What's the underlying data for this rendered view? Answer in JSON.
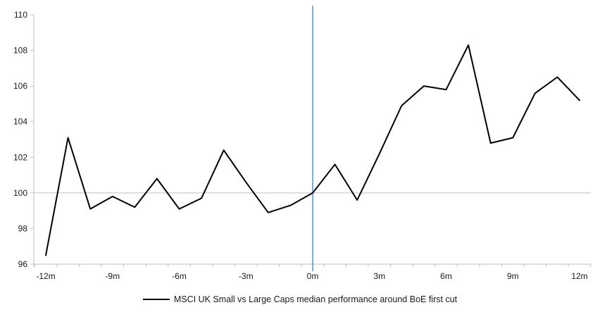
{
  "chart_data": {
    "type": "line",
    "title": "",
    "xlabel": "",
    "ylabel": "",
    "x": [
      -12,
      -11,
      -10,
      -9,
      -8,
      -7,
      -6,
      -5,
      -4,
      -3,
      -2,
      -1,
      0,
      1,
      2,
      3,
      4,
      5,
      6,
      7,
      8,
      9,
      10,
      11,
      12
    ],
    "series": [
      {
        "name": "MSCI UK Small vs Large Caps median performance around BoE first cut",
        "values": [
          96.5,
          103.1,
          99.1,
          99.8,
          99.2,
          100.8,
          99.1,
          99.7,
          102.4,
          100.6,
          98.9,
          99.3,
          100.0,
          101.6,
          99.6,
          102.2,
          104.9,
          106.0,
          105.8,
          108.3,
          102.8,
          103.1,
          105.6,
          106.5,
          105.2
        ]
      }
    ],
    "xlim": [
      -12,
      12
    ],
    "ylim": [
      96,
      110
    ],
    "y_ticks": [
      96,
      98,
      100,
      102,
      104,
      106,
      108,
      110
    ],
    "x_ticks": [
      {
        "month": -12,
        "label": "-12m"
      },
      {
        "month": -9,
        "label": "-9m"
      },
      {
        "month": -6,
        "label": "-6m"
      },
      {
        "month": -3,
        "label": "-3m"
      },
      {
        "month": 0,
        "label": "0m"
      },
      {
        "month": 3,
        "label": "3m"
      },
      {
        "month": 6,
        "label": "6m"
      },
      {
        "month": 9,
        "label": "9m"
      },
      {
        "month": 12,
        "label": "12m"
      }
    ],
    "grid": "single horizontal reference line at y=100",
    "reference_lines": {
      "horizontal_at_y": 100,
      "vertical_at_x": 0
    },
    "legend_position": "bottom-center",
    "colors": {
      "series_line": "#000000",
      "vertical_event_line": "#5B9BD5",
      "axis_line": "#BFBFBF",
      "reference_line_100": "#BFBFBF",
      "tick_text": "#1a1a1a"
    }
  },
  "legend": {
    "label": "MSCI UK Small vs Large Caps median performance around BoE first cut"
  }
}
